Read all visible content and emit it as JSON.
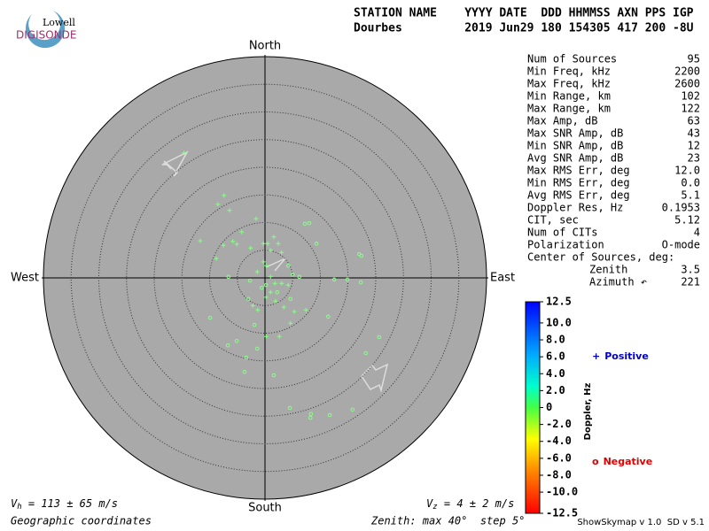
{
  "logo": {
    "top": "Lowell",
    "bottom": "DIGISONDE"
  },
  "header": {
    "line1": "STATION NAME    YYYY DATE  DDD HHMMSS AXN PPS IGP",
    "line2": "Dourbes         2019 Jun29 180 154305 417 200 -8U"
  },
  "stats": [
    [
      "Num of Sources",
      "95"
    ],
    [
      "Min Freq, kHz",
      "2200"
    ],
    [
      "Max Freq, kHz",
      "2600"
    ],
    [
      "Min Range, km",
      "102"
    ],
    [
      "Max Range, km",
      "122"
    ],
    [
      "Max Amp, dB",
      "63"
    ],
    [
      "Max SNR Amp, dB",
      "43"
    ],
    [
      "Min SNR Amp, dB",
      "12"
    ],
    [
      "Avg SNR Amp, dB",
      "23"
    ],
    [
      "Max RMS Err, deg",
      "12.0"
    ],
    [
      "Min RMS Err, deg",
      "0.0"
    ],
    [
      "Avg RMS Err, deg",
      "5.1"
    ],
    [
      "Doppler Res, Hz",
      "0.1953"
    ],
    [
      "CIT, sec",
      "5.12"
    ],
    [
      "Num of CITs",
      "4"
    ],
    [
      "Polarization",
      "O-mode"
    ]
  ],
  "center": {
    "label": "Center of Sources, deg:",
    "zenith": [
      "Zenith",
      "3.5"
    ],
    "azimuth": [
      "Azimuth ↶",
      "221"
    ]
  },
  "footer": {
    "vh": {
      "symbol": "V",
      "sub": "h",
      "text": " = 113 ± 65 m/s"
    },
    "vz": {
      "symbol": "V",
      "sub": "z",
      "text": " = 4 ± 2 m/s"
    },
    "coords": "Geographic coordinates",
    "zenith": "Zenith: max 40°  step 5°",
    "version": "ShowSkymap v 1.0  SD v 5.1"
  },
  "chart_data": {
    "type": "skymap",
    "directions": {
      "north": "North",
      "south": "South",
      "east": "East",
      "west": "West"
    },
    "rlim": [
      0,
      40
    ],
    "rticks": [
      5,
      10,
      15,
      20,
      25,
      30,
      35
    ],
    "series": [
      {
        "name": "Positive",
        "marker": "+",
        "color": "#88ff88",
        "legend_color": "#0000cc",
        "x": [
          -14.6,
          -7.4,
          -8.5,
          -6.4,
          -1.6,
          -11.7,
          -8.8,
          -7.5,
          -5.8,
          -5.1,
          -4.2,
          -2.6,
          -0.3,
          0.5,
          1.0,
          1.6,
          2.4,
          3.0,
          -0.3,
          -1.4,
          0.2,
          1.0,
          1.8,
          3.0,
          4.2,
          1.0,
          0.2,
          -2.2,
          -1.3,
          1.9,
          3.4,
          5.3,
          7.4,
          4.6,
          2.6,
          0.2
        ],
        "y": [
          22.6,
          14.9,
          13.3,
          12.2,
          10.7,
          6.7,
          3.5,
          5.9,
          6.6,
          6.1,
          8.3,
          5.4,
          6.2,
          6.2,
          5.0,
          7.4,
          6.2,
          4.6,
          2.9,
          1.1,
          2.2,
          0.2,
          -1.0,
          -1.0,
          -1.3,
          -2.6,
          -3.5,
          -5.0,
          -5.8,
          -4.2,
          -5.3,
          -6.1,
          -5.8,
          -8.2,
          -10.6,
          -10.6
        ]
      },
      {
        "name": "Negative",
        "marker": "o",
        "color": "#88ff88",
        "legend_color": "#dd0000",
        "x": [
          -1.9,
          -9.9,
          -5.1,
          -6.7,
          -1.4,
          -3.4,
          -3.7,
          1.6,
          5.0,
          7.2,
          8.0,
          9.3,
          12.5,
          14.9,
          17.3,
          11.4,
          17.0,
          17.4,
          20.6,
          18.2,
          15.8,
          11.7,
          8.3,
          8.2,
          4.5,
          -2.7,
          -6.6,
          0.2,
          -0.6,
          -3.0,
          4.2,
          4.6,
          2.2,
          6.2
        ],
        "y": [
          -8.5,
          -7.2,
          -11.4,
          -12.2,
          -12.8,
          -14.4,
          -17.0,
          -17.6,
          0.6,
          9.8,
          9.9,
          6.2,
          -0.3,
          -0.3,
          -0.8,
          -7.0,
          4.3,
          4.0,
          -10.7,
          -13.6,
          -23.8,
          -24.8,
          -24.6,
          -25.3,
          -23.5,
          -0.5,
          0.2,
          -1.3,
          -1.8,
          -3.8,
          2.2,
          -3.8,
          -2.6,
          0.2
        ]
      }
    ],
    "colorbar": {
      "label": "Doppler, Hz",
      "clim": [
        -12.5,
        12.5
      ],
      "ticks": [
        12.5,
        {
          "value": 10,
          "label": "10.0"
        },
        {
          "value": 8,
          "label": "8.0"
        },
        {
          "value": 6,
          "label": "6.0"
        },
        {
          "value": 4,
          "label": "4.0"
        },
        {
          "value": 2,
          "label": "2.0"
        },
        0,
        {
          "value": -2,
          "label": "-2.0"
        },
        {
          "value": -4,
          "label": "-4.0"
        },
        {
          "value": -6,
          "label": "-6.0"
        },
        {
          "value": -8,
          "label": "-8.0"
        },
        {
          "value": -10,
          "label": "-10.0"
        },
        -12.5
      ]
    }
  }
}
